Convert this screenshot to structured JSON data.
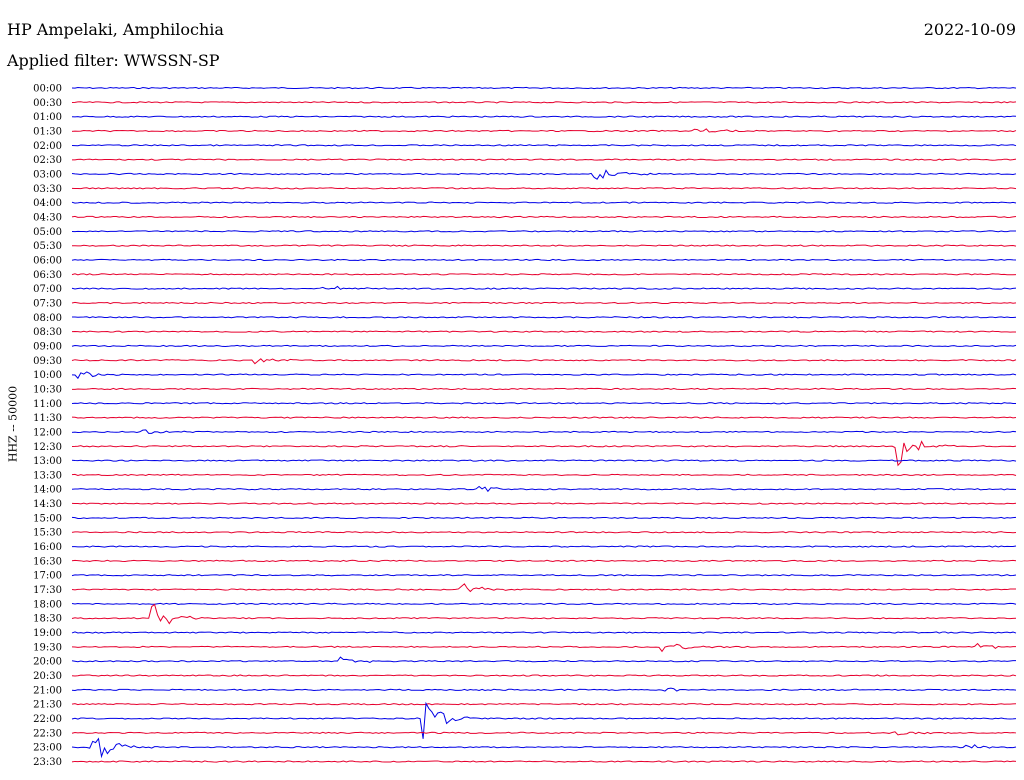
{
  "header": {
    "station": "HP Ampelaki, Amphilochia",
    "filter": "Applied filter: WWSSN-SP",
    "date": "2022-10-09"
  },
  "channel_label": "HHZ -- 50000",
  "colors": {
    "blue": "#0000e6",
    "red": "#e6002e"
  },
  "chart_data": {
    "type": "line",
    "title": "HP Ampelaki, Amphilochia",
    "subtitle": "Applied filter: WWSSN-SP",
    "ylabel": "HHZ -- 50000",
    "rows": [
      "00:00",
      "00:30",
      "01:00",
      "01:30",
      "02:00",
      "02:30",
      "03:00",
      "03:30",
      "04:00",
      "04:30",
      "05:00",
      "05:30",
      "06:00",
      "06:30",
      "07:00",
      "07:30",
      "08:00",
      "08:30",
      "09:00",
      "09:30",
      "10:00",
      "10:30",
      "11:00",
      "11:30",
      "12:00",
      "12:30",
      "13:00",
      "13:30",
      "14:00",
      "14:30",
      "15:00",
      "15:30",
      "16:00",
      "16:30",
      "17:00",
      "17:30",
      "18:00",
      "18:30",
      "19:00",
      "19:30",
      "20:00",
      "20:30",
      "21:00",
      "21:30",
      "22:00",
      "22:30",
      "23:00",
      "23:30"
    ],
    "row_minutes": 30,
    "series_colors": [
      "#0000e6",
      "#e6002e"
    ],
    "events": [
      {
        "row": "03:00",
        "minute": 16.6,
        "amplitude": 0.7
      },
      {
        "row": "01:30",
        "minute": 19.8,
        "amplitude": 0.3
      },
      {
        "row": "07:00",
        "minute": 8.0,
        "amplitude": 0.35
      },
      {
        "row": "09:30",
        "minute": 5.8,
        "amplitude": 0.35
      },
      {
        "row": "10:00",
        "minute": 0.2,
        "amplitude": 0.35
      },
      {
        "row": "12:30",
        "minute": 26.2,
        "amplitude": 1.8
      },
      {
        "row": "12:00",
        "minute": 2.2,
        "amplitude": 0.25
      },
      {
        "row": "14:00",
        "minute": 13.0,
        "amplitude": 0.25
      },
      {
        "row": "17:30",
        "minute": 12.4,
        "amplitude": 0.6
      },
      {
        "row": "18:30",
        "minute": 2.6,
        "amplitude": 1.1
      },
      {
        "row": "19:30",
        "minute": 18.8,
        "amplitude": 0.5
      },
      {
        "row": "19:30",
        "minute": 28.8,
        "amplitude": 0.3
      },
      {
        "row": "20:00",
        "minute": 8.6,
        "amplitude": 0.3
      },
      {
        "row": "21:00",
        "minute": 18.8,
        "amplitude": 0.25
      },
      {
        "row": "22:00",
        "minute": 11.2,
        "amplitude": 1.6
      },
      {
        "row": "22:30",
        "minute": 26.2,
        "amplitude": 0.25
      },
      {
        "row": "23:00",
        "minute": 0.6,
        "amplitude": 1.6
      },
      {
        "row": "23:00",
        "minute": 28.4,
        "amplitude": 0.25
      }
    ]
  }
}
